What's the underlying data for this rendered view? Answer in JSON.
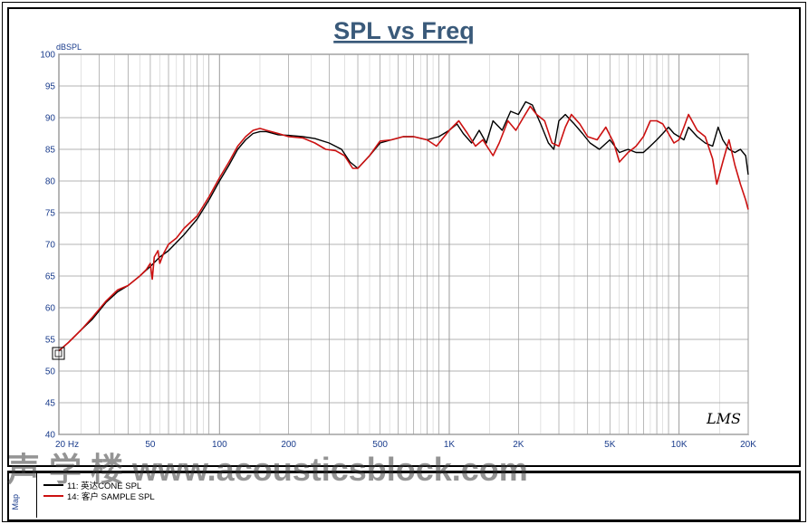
{
  "chart_data": {
    "type": "line",
    "title": "SPL vs Freq",
    "ylabel": "dBSPL",
    "xscale": "log",
    "xlim": [
      20,
      20000
    ],
    "ylim": [
      40,
      100
    ],
    "grid": true,
    "x_tick_labels": [
      {
        "value": 20,
        "label": "20  Hz"
      },
      {
        "value": 50,
        "label": "50"
      },
      {
        "value": 100,
        "label": "100"
      },
      {
        "value": 200,
        "label": "200"
      },
      {
        "value": 500,
        "label": "500"
      },
      {
        "value": 1000,
        "label": "1K"
      },
      {
        "value": 2000,
        "label": "2K"
      },
      {
        "value": 5000,
        "label": "5K"
      },
      {
        "value": 10000,
        "label": "10K"
      },
      {
        "value": 20000,
        "label": "20K"
      }
    ],
    "y_ticks": [
      40,
      45,
      50,
      55,
      60,
      65,
      70,
      75,
      80,
      85,
      90,
      95,
      100
    ],
    "series": [
      {
        "name": "11: 英达CONE   SPL",
        "color": "#000000",
        "points": [
          [
            20,
            53.2
          ],
          [
            22,
            54.5
          ],
          [
            25,
            56.5
          ],
          [
            28,
            58.2
          ],
          [
            32,
            60.8
          ],
          [
            36,
            62.5
          ],
          [
            40,
            63.5
          ],
          [
            45,
            65
          ],
          [
            50,
            66.5
          ],
          [
            55,
            68
          ],
          [
            60,
            69
          ],
          [
            70,
            71.5
          ],
          [
            80,
            74
          ],
          [
            90,
            77
          ],
          [
            100,
            80
          ],
          [
            110,
            82.5
          ],
          [
            120,
            85
          ],
          [
            130,
            86.5
          ],
          [
            140,
            87.5
          ],
          [
            150,
            87.8
          ],
          [
            160,
            87.8
          ],
          [
            180,
            87.3
          ],
          [
            200,
            87.2
          ],
          [
            230,
            87
          ],
          [
            260,
            86.7
          ],
          [
            300,
            86
          ],
          [
            340,
            85
          ],
          [
            370,
            83
          ],
          [
            400,
            82
          ],
          [
            450,
            84
          ],
          [
            500,
            86
          ],
          [
            560,
            86.5
          ],
          [
            630,
            87
          ],
          [
            700,
            87
          ],
          [
            800,
            86.5
          ],
          [
            900,
            87
          ],
          [
            1000,
            88
          ],
          [
            1080,
            89
          ],
          [
            1150,
            87.5
          ],
          [
            1250,
            86
          ],
          [
            1350,
            88
          ],
          [
            1450,
            86
          ],
          [
            1550,
            89.5
          ],
          [
            1700,
            88
          ],
          [
            1850,
            91
          ],
          [
            2000,
            90.5
          ],
          [
            2150,
            92.5
          ],
          [
            2300,
            92
          ],
          [
            2500,
            89
          ],
          [
            2700,
            86
          ],
          [
            2850,
            85
          ],
          [
            3000,
            89.5
          ],
          [
            3200,
            90.5
          ],
          [
            3500,
            89
          ],
          [
            3800,
            87.5
          ],
          [
            4100,
            86
          ],
          [
            4500,
            85
          ],
          [
            5000,
            86.5
          ],
          [
            5500,
            84.5
          ],
          [
            6000,
            85
          ],
          [
            6500,
            84.5
          ],
          [
            7000,
            84.5
          ],
          [
            7500,
            85.5
          ],
          [
            8000,
            86.5
          ],
          [
            8500,
            87.5
          ],
          [
            9000,
            88.5
          ],
          [
            9500,
            87.5
          ],
          [
            10000,
            87
          ],
          [
            10500,
            86.5
          ],
          [
            11000,
            88.5
          ],
          [
            12000,
            87
          ],
          [
            13000,
            86
          ],
          [
            14000,
            85.5
          ],
          [
            14800,
            88.5
          ],
          [
            15500,
            86.5
          ],
          [
            16500,
            85
          ],
          [
            17500,
            84.5
          ],
          [
            18500,
            85
          ],
          [
            19500,
            84
          ],
          [
            20000,
            81
          ]
        ]
      },
      {
        "name": "14: 客户  SAMPLE   SPL",
        "color": "#cc1111",
        "points": [
          [
            20,
            53.2
          ],
          [
            22,
            54.5
          ],
          [
            25,
            56.5
          ],
          [
            28,
            58.5
          ],
          [
            32,
            61
          ],
          [
            36,
            62.8
          ],
          [
            40,
            63.5
          ],
          [
            45,
            65
          ],
          [
            48,
            66
          ],
          [
            50,
            67
          ],
          [
            51,
            64.5
          ],
          [
            52,
            68
          ],
          [
            54,
            69
          ],
          [
            55,
            67
          ],
          [
            57,
            68.5
          ],
          [
            60,
            70
          ],
          [
            65,
            71
          ],
          [
            70,
            72.5
          ],
          [
            80,
            74.5
          ],
          [
            90,
            77.5
          ],
          [
            100,
            80.5
          ],
          [
            110,
            83
          ],
          [
            120,
            85.5
          ],
          [
            130,
            87
          ],
          [
            140,
            88
          ],
          [
            150,
            88.3
          ],
          [
            160,
            88
          ],
          [
            180,
            87.5
          ],
          [
            200,
            87
          ],
          [
            230,
            86.8
          ],
          [
            260,
            86
          ],
          [
            290,
            85
          ],
          [
            320,
            84.8
          ],
          [
            350,
            84
          ],
          [
            380,
            82
          ],
          [
            400,
            82
          ],
          [
            450,
            84
          ],
          [
            500,
            86.3
          ],
          [
            560,
            86.5
          ],
          [
            630,
            87
          ],
          [
            700,
            87
          ],
          [
            800,
            86.5
          ],
          [
            880,
            85.5
          ],
          [
            1000,
            88
          ],
          [
            1100,
            89.5
          ],
          [
            1200,
            87.5
          ],
          [
            1300,
            85.5
          ],
          [
            1400,
            86.5
          ],
          [
            1550,
            84
          ],
          [
            1650,
            86
          ],
          [
            1800,
            89.5
          ],
          [
            1950,
            88
          ],
          [
            2100,
            90
          ],
          [
            2250,
            91.8
          ],
          [
            2400,
            90.5
          ],
          [
            2600,
            89.5
          ],
          [
            2800,
            86
          ],
          [
            3000,
            85.5
          ],
          [
            3200,
            88.5
          ],
          [
            3400,
            90.5
          ],
          [
            3700,
            89
          ],
          [
            4000,
            87
          ],
          [
            4400,
            86.5
          ],
          [
            4800,
            88.5
          ],
          [
            5200,
            86
          ],
          [
            5500,
            83
          ],
          [
            6000,
            84.5
          ],
          [
            6500,
            85.5
          ],
          [
            7000,
            87
          ],
          [
            7500,
            89.5
          ],
          [
            8000,
            89.5
          ],
          [
            8500,
            89
          ],
          [
            9000,
            87.5
          ],
          [
            9500,
            86
          ],
          [
            10000,
            86.5
          ],
          [
            10500,
            88.5
          ],
          [
            11000,
            90.5
          ],
          [
            12000,
            88
          ],
          [
            13000,
            87
          ],
          [
            14000,
            83.5
          ],
          [
            14600,
            79.5
          ],
          [
            15500,
            83
          ],
          [
            16500,
            86.5
          ],
          [
            17500,
            82.5
          ],
          [
            18500,
            79.5
          ],
          [
            19500,
            77
          ],
          [
            20000,
            75.5
          ]
        ]
      }
    ]
  },
  "legend": {
    "items": [
      {
        "label": "11: 英达CONE   SPL",
        "color": "#000000"
      },
      {
        "label": "14: 客户  SAMPLE   SPL",
        "color": "#cc1111"
      }
    ]
  },
  "map_tab_label": "Map",
  "watermark_text": "声 学 楼  www.acousticsblock.com",
  "logo_text": "LMS",
  "colors": {
    "title": "#3a5a7a",
    "grid": "#9a9a9a",
    "axis_text": "#1a3c8c"
  }
}
